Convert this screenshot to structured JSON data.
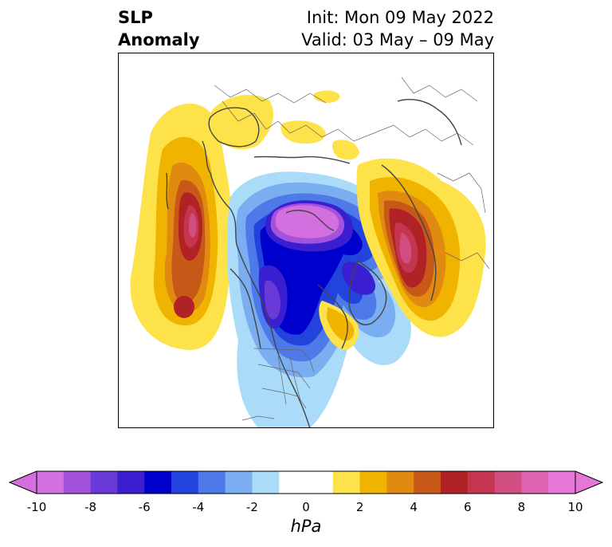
{
  "title": {
    "left_line1": "SLP",
    "left_line2": "Anomaly",
    "right_line1": "Init: Mon 09 May 2022",
    "right_line2": "Valid: 03 May – 09 May"
  },
  "colorbar": {
    "unit_label": "hPa",
    "tick_labels": [
      "-10",
      "-8",
      "-6",
      "-4",
      "-2",
      "0",
      "2",
      "4",
      "6",
      "8",
      "10"
    ],
    "colors": [
      "#d46fe0",
      "#a352dc",
      "#6a3ad8",
      "#3a1fd0",
      "#0000cc",
      "#2244dd",
      "#4d7ae8",
      "#7aaef0",
      "#aadcfa",
      "#ffffff",
      "#ffffff",
      "#fde24a",
      "#f0b400",
      "#e08a10",
      "#c85818",
      "#b02226",
      "#c43550",
      "#d04f80",
      "#dc63b0",
      "#e676d8"
    ]
  }
}
